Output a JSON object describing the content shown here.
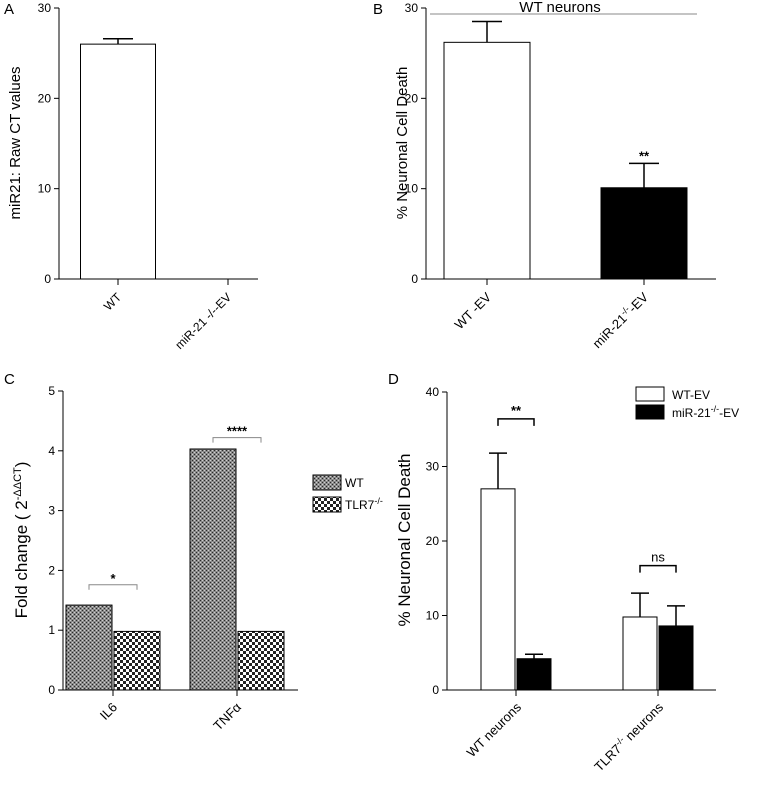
{
  "chart_data": [
    {
      "panel": "A",
      "type": "bar",
      "categories": [
        "WT",
        "miR-21 -/--EV"
      ],
      "values": [
        26.0,
        0
      ],
      "errors": [
        0.6,
        0
      ],
      "ylabel": "miR21: Raw CT values",
      "ylim": [
        0,
        30
      ],
      "yticks": [
        "0",
        "10",
        "20",
        "30"
      ],
      "colors": [
        "#ffffff",
        "#ffffff"
      ]
    },
    {
      "panel": "B",
      "type": "bar",
      "title": "WT neurons",
      "categories": [
        "WT -EV",
        "miR-21-/--EV"
      ],
      "categories_base": [
        "WT -EV",
        "miR-21"
      ],
      "categories_sup": [
        "",
        "-/-"
      ],
      "categories_suffix": [
        "",
        "-EV"
      ],
      "values": [
        26.2,
        10.1
      ],
      "errors": [
        2.3,
        2.7
      ],
      "significance": [
        "",
        "**"
      ],
      "ylabel": "% Neuronal Cell Death",
      "ylim": [
        0,
        30
      ],
      "yticks": [
        "0",
        "10",
        "20",
        "30"
      ],
      "colors": [
        "#ffffff",
        "#000000"
      ]
    },
    {
      "panel": "C",
      "type": "bar",
      "categories": [
        "IL6",
        "TNFα"
      ],
      "series": [
        {
          "name": "WT",
          "values": [
            1.42,
            4.03
          ]
        },
        {
          "name": "TLR7-/-",
          "name_base": "TLR7",
          "name_sup": "-/-",
          "values": [
            0.98,
            0.98
          ]
        }
      ],
      "comparisons": [
        "*",
        "****"
      ],
      "ylabel": "Fold change ( 2-ΔΔCT)",
      "ylabel_base": "Fold change ( 2",
      "ylabel_sup": "-ΔΔCT",
      "ylabel_end": ")",
      "ylim": [
        0,
        5
      ],
      "yticks": [
        "0",
        "1",
        "2",
        "3",
        "4",
        "5"
      ],
      "legend_position": "right"
    },
    {
      "panel": "D",
      "type": "bar",
      "categories": [
        "WT neurons",
        "TLR7-/- neurons"
      ],
      "categories_base": [
        "WT neurons",
        "TLR7"
      ],
      "categories_sup": [
        "",
        "-/-"
      ],
      "categories_suffix": [
        "",
        " neurons"
      ],
      "series": [
        {
          "name": "WT-EV",
          "values": [
            27.0,
            9.8
          ],
          "errors": [
            4.8,
            3.2
          ]
        },
        {
          "name": "miR-21-/--EV",
          "name_base": "miR-21",
          "name_sup": "-/-",
          "name_suffix": "-EV",
          "values": [
            4.2,
            8.6
          ],
          "errors": [
            0.6,
            2.7
          ]
        }
      ],
      "comparisons": [
        "**",
        "ns"
      ],
      "ylabel": "% Neuronal Cell Death",
      "ylim": [
        0,
        40
      ],
      "yticks": [
        "0",
        "10",
        "20",
        "30",
        "40"
      ],
      "legend_position": "top-right"
    }
  ],
  "panels": [
    "A",
    "B",
    "C",
    "D"
  ]
}
